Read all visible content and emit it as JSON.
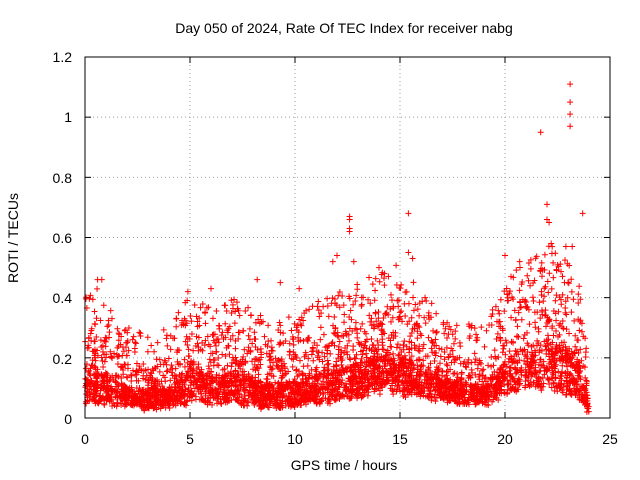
{
  "chart_data": {
    "type": "scatter",
    "title": "Day 050 of 2024, Rate Of TEC Index for receiver nabg",
    "xlabel": "GPS time / hours",
    "ylabel": "ROTI / TECUs",
    "xlim": [
      0,
      25
    ],
    "ylim": [
      0,
      1.2
    ],
    "x_ticks": [
      0,
      5,
      10,
      15,
      20,
      25
    ],
    "x_tick_labels": [
      "0",
      "5",
      "10",
      "15",
      "20",
      "25"
    ],
    "y_ticks": [
      0,
      0.2,
      0.4,
      0.6,
      0.8,
      1.0,
      1.2
    ],
    "y_tick_labels": [
      "0",
      "0.2",
      "0.4",
      "0.6",
      "0.8",
      "1",
      "1.2"
    ],
    "grid": true,
    "marker": "+",
    "color": "#ff0000",
    "series": [
      {
        "name": "ROTI",
        "envelope": {
          "x": [
            0,
            0.5,
            1,
            2,
            3,
            4,
            5,
            6,
            7,
            8,
            9,
            10,
            11,
            12,
            13,
            14,
            15,
            16,
            17,
            18,
            19,
            19.5,
            20,
            21,
            22,
            23,
            23.5,
            24
          ],
          "base": [
            0.05,
            0.05,
            0.05,
            0.04,
            0.03,
            0.04,
            0.05,
            0.05,
            0.05,
            0.04,
            0.03,
            0.04,
            0.05,
            0.06,
            0.07,
            0.08,
            0.08,
            0.07,
            0.06,
            0.05,
            0.04,
            0.06,
            0.08,
            0.1,
            0.1,
            0.08,
            0.07,
            0.02
          ],
          "upper": [
            0.3,
            0.32,
            0.25,
            0.18,
            0.16,
            0.18,
            0.3,
            0.25,
            0.28,
            0.24,
            0.2,
            0.22,
            0.27,
            0.3,
            0.32,
            0.36,
            0.4,
            0.3,
            0.22,
            0.2,
            0.18,
            0.25,
            0.35,
            0.4,
            0.45,
            0.42,
            0.35,
            0.05
          ]
        },
        "outliers": [
          {
            "x": 0.6,
            "y": 0.46
          },
          {
            "x": 0.8,
            "y": 0.46
          },
          {
            "x": 4.9,
            "y": 0.42
          },
          {
            "x": 6.0,
            "y": 0.43
          },
          {
            "x": 8.2,
            "y": 0.46
          },
          {
            "x": 9.3,
            "y": 0.45
          },
          {
            "x": 10.2,
            "y": 0.43
          },
          {
            "x": 11.8,
            "y": 0.52
          },
          {
            "x": 12.0,
            "y": 0.54
          },
          {
            "x": 12.6,
            "y": 0.67
          },
          {
            "x": 12.6,
            "y": 0.66
          },
          {
            "x": 12.6,
            "y": 0.63
          },
          {
            "x": 12.6,
            "y": 0.62
          },
          {
            "x": 12.8,
            "y": 0.52
          },
          {
            "x": 14.0,
            "y": 0.5
          },
          {
            "x": 15.4,
            "y": 0.68
          },
          {
            "x": 15.4,
            "y": 0.55
          },
          {
            "x": 15.6,
            "y": 0.53
          },
          {
            "x": 20.0,
            "y": 0.54
          },
          {
            "x": 20.7,
            "y": 0.52
          },
          {
            "x": 21.7,
            "y": 0.95
          },
          {
            "x": 22.0,
            "y": 0.71
          },
          {
            "x": 22.0,
            "y": 0.66
          },
          {
            "x": 22.1,
            "y": 0.65
          },
          {
            "x": 22.2,
            "y": 0.58
          },
          {
            "x": 22.9,
            "y": 0.57
          },
          {
            "x": 23.1,
            "y": 1.11
          },
          {
            "x": 23.1,
            "y": 1.05
          },
          {
            "x": 23.1,
            "y": 1.01
          },
          {
            "x": 23.1,
            "y": 0.97
          },
          {
            "x": 23.2,
            "y": 0.57
          },
          {
            "x": 23.7,
            "y": 0.68
          },
          {
            "x": 23.9,
            "y": 0.02
          }
        ]
      }
    ]
  }
}
